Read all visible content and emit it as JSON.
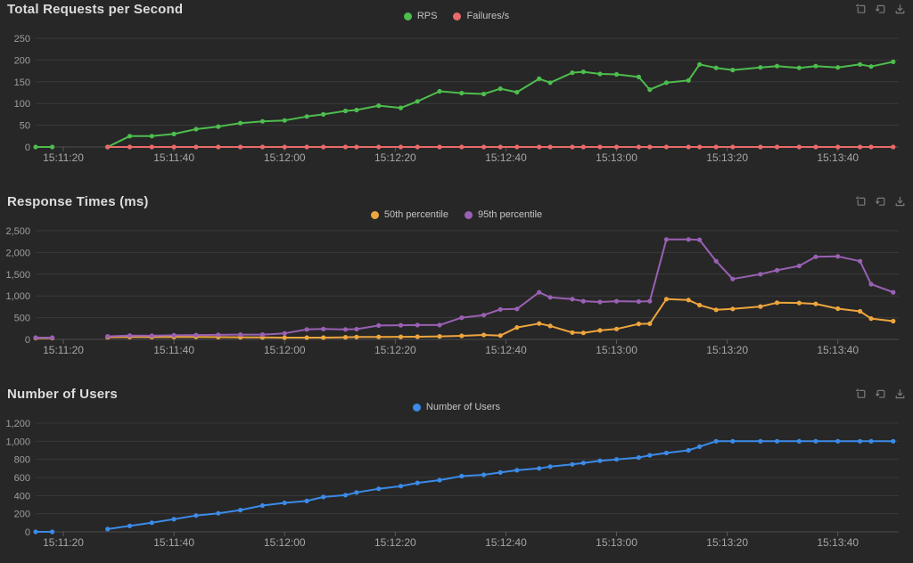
{
  "colors": {
    "background": "#272727",
    "gridline": "#3a3a3a",
    "axis_line": "#4d4d4d",
    "tick": "#5a5a5a",
    "y_label": "#9e9e9e",
    "x_label": "#a6a6a6",
    "title": "#dcdcdc",
    "legend_text": "#c4c4c4",
    "toolbox_icon": "#7a7a7a",
    "rps_green": "#4dbd4d",
    "failures_red": "#e96a6a",
    "p50_orange": "#eea53d",
    "p95_purple": "#9a60b4",
    "users_blue": "#3b8be9"
  },
  "toolbox": {
    "icons": [
      {
        "name": "zoom-select-icon"
      },
      {
        "name": "restore-zoom-icon"
      },
      {
        "name": "download-chart-icon"
      }
    ]
  },
  "x_tick_labels": [
    "15:11:20",
    "15:11:40",
    "15:12:00",
    "15:12:20",
    "15:12:40",
    "15:13:00",
    "15:13:20",
    "15:13:40"
  ],
  "chart_data": [
    {
      "type": "line",
      "title": "Total Requests per Second",
      "xlabel": "",
      "ylabel": "",
      "ylim": [
        0,
        250
      ],
      "yticks": [
        {
          "v": 0,
          "label": "0"
        },
        {
          "v": 50,
          "label": "50"
        },
        {
          "v": 100,
          "label": "100"
        },
        {
          "v": 150,
          "label": "150"
        },
        {
          "v": 200,
          "label": "200"
        },
        {
          "v": 250,
          "label": "250"
        }
      ],
      "xticks": [
        {
          "t": 5,
          "label": "15:11:20"
        },
        {
          "t": 25,
          "label": "15:11:40"
        },
        {
          "t": 45,
          "label": "15:12:00"
        },
        {
          "t": 65,
          "label": "15:12:20"
        },
        {
          "t": 85,
          "label": "15:12:40"
        },
        {
          "t": 105,
          "label": "15:13:00"
        },
        {
          "t": 125,
          "label": "15:13:20"
        },
        {
          "t": 145,
          "label": "15:13:40"
        }
      ],
      "t": [
        0,
        3,
        8,
        13,
        17,
        21,
        25,
        29,
        33,
        37,
        41,
        45,
        49,
        52,
        56,
        58,
        62,
        66,
        69,
        73,
        77,
        81,
        84,
        87,
        91,
        93,
        97,
        99,
        102,
        105,
        109,
        111,
        114,
        118,
        120,
        123,
        126,
        131,
        134,
        138,
        141,
        145,
        149,
        151,
        155
      ],
      "series": [
        {
          "name": "RPS",
          "color": "#4dbd4d",
          "values": [
            0,
            0,
            null,
            0,
            25,
            25,
            30,
            41,
            47,
            55,
            59,
            61,
            70,
            75,
            83,
            85,
            95,
            90,
            105,
            128,
            124,
            122,
            134,
            126,
            157,
            148,
            171,
            173,
            168,
            167,
            161,
            132,
            148,
            153,
            190,
            182,
            177,
            183,
            186,
            182,
            186,
            183,
            190,
            185,
            196
          ]
        },
        {
          "name": "Failures/s",
          "color": "#e96a6a",
          "values": [
            null,
            null,
            null,
            0,
            0,
            0,
            0,
            0,
            0,
            0,
            0,
            0,
            0,
            0,
            0,
            0,
            0,
            0,
            0,
            0,
            0,
            0,
            0,
            0,
            0,
            0,
            0,
            0,
            0,
            0,
            0,
            0,
            0,
            0,
            0,
            0,
            0,
            0,
            0,
            0,
            0,
            0,
            0,
            0,
            0
          ]
        }
      ],
      "legend_position": "top-center",
      "grid": true
    },
    {
      "type": "line",
      "title": "Response Times (ms)",
      "xlabel": "",
      "ylabel": "",
      "ylim": [
        0,
        2500
      ],
      "yticks": [
        {
          "v": 0,
          "label": "0"
        },
        {
          "v": 500,
          "label": "500"
        },
        {
          "v": 1000,
          "label": "1,000"
        },
        {
          "v": 1500,
          "label": "1,500"
        },
        {
          "v": 2000,
          "label": "2,000"
        },
        {
          "v": 2500,
          "label": "2,500"
        }
      ],
      "xticks": [
        {
          "t": 5,
          "label": "15:11:20"
        },
        {
          "t": 25,
          "label": "15:11:40"
        },
        {
          "t": 45,
          "label": "15:12:00"
        },
        {
          "t": 65,
          "label": "15:12:20"
        },
        {
          "t": 85,
          "label": "15:12:40"
        },
        {
          "t": 105,
          "label": "15:13:00"
        },
        {
          "t": 125,
          "label": "15:13:20"
        },
        {
          "t": 145,
          "label": "15:13:40"
        }
      ],
      "t": [
        0,
        3,
        8,
        13,
        17,
        21,
        25,
        29,
        33,
        37,
        41,
        45,
        49,
        52,
        56,
        58,
        62,
        66,
        69,
        73,
        77,
        81,
        84,
        87,
        91,
        93,
        97,
        99,
        102,
        105,
        109,
        111,
        114,
        118,
        120,
        123,
        126,
        131,
        134,
        138,
        141,
        145,
        149,
        151,
        155
      ],
      "series": [
        {
          "name": "50th percentile",
          "color": "#eea53d",
          "values": [
            30,
            30,
            null,
            50,
            55,
            53,
            55,
            57,
            53,
            50,
            45,
            40,
            40,
            42,
            50,
            55,
            58,
            60,
            62,
            70,
            82,
            103,
            88,
            274,
            364,
            309,
            158,
            150,
            206,
            240,
            357,
            360,
            927,
            906,
            789,
            680,
            700,
            756,
            845,
            838,
            818,
            707,
            645,
            480,
            420
          ]
        },
        {
          "name": "95th percentile",
          "color": "#9a60b4",
          "values": [
            40,
            40,
            null,
            70,
            88,
            85,
            95,
            100,
            105,
            110,
            110,
            140,
            230,
            240,
            230,
            235,
            320,
            325,
            330,
            330,
            500,
            560,
            690,
            700,
            1085,
            968,
            927,
            880,
            860,
            880,
            870,
            880,
            2300,
            2300,
            2290,
            1800,
            1390,
            1500,
            1590,
            1690,
            1900,
            1910,
            1800,
            1270,
            1085
          ]
        }
      ],
      "legend_position": "top-center",
      "grid": true
    },
    {
      "type": "line",
      "title": "Number of Users",
      "xlabel": "",
      "ylabel": "",
      "ylim": [
        0,
        1200
      ],
      "yticks": [
        {
          "v": 0,
          "label": "0"
        },
        {
          "v": 200,
          "label": "200"
        },
        {
          "v": 400,
          "label": "400"
        },
        {
          "v": 600,
          "label": "600"
        },
        {
          "v": 800,
          "label": "800"
        },
        {
          "v": 1000,
          "label": "1,000"
        },
        {
          "v": 1200,
          "label": "1,200"
        }
      ],
      "xticks": [
        {
          "t": 5,
          "label": "15:11:20"
        },
        {
          "t": 25,
          "label": "15:11:40"
        },
        {
          "t": 45,
          "label": "15:12:00"
        },
        {
          "t": 65,
          "label": "15:12:20"
        },
        {
          "t": 85,
          "label": "15:12:40"
        },
        {
          "t": 105,
          "label": "15:13:00"
        },
        {
          "t": 125,
          "label": "15:13:20"
        },
        {
          "t": 145,
          "label": "15:13:40"
        }
      ],
      "t": [
        0,
        3,
        8,
        13,
        17,
        21,
        25,
        29,
        33,
        37,
        41,
        45,
        49,
        52,
        56,
        58,
        62,
        66,
        69,
        73,
        77,
        81,
        84,
        87,
        91,
        93,
        97,
        99,
        102,
        105,
        109,
        111,
        114,
        118,
        120,
        123,
        126,
        131,
        134,
        138,
        141,
        145,
        149,
        151,
        155
      ],
      "series": [
        {
          "name": "Number of Users",
          "color": "#3b8be9",
          "values": [
            0,
            0,
            null,
            30,
            65,
            100,
            140,
            180,
            205,
            240,
            290,
            320,
            340,
            385,
            405,
            435,
            475,
            505,
            540,
            570,
            615,
            630,
            655,
            680,
            700,
            720,
            745,
            760,
            785,
            800,
            820,
            845,
            870,
            900,
            940,
            1000,
            1000,
            1000,
            1000,
            1000,
            1000,
            1000,
            1000,
            1000,
            1000
          ]
        }
      ],
      "legend_position": "top-center",
      "grid": true
    }
  ]
}
